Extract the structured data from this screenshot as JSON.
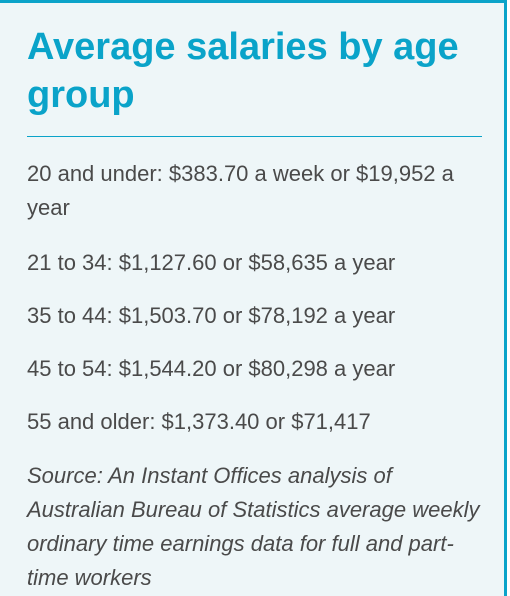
{
  "title": "Average salaries by age group",
  "items": [
    "20 and under: $383.70 a week or $19,952 a year",
    "21 to 34: $1,127.60 or $58,635 a year",
    "35 to 44: $1,503.70 or $78,192 a year",
    "45 to 54: $1,544.20 or $80,298 a year",
    "55 and older: $1,373.40 or $71,417"
  ],
  "source": "Source: An Instant Offices analysis of Australian Bureau of Statistics average weekly ordinary time earnings data for full and part-time workers",
  "colors": {
    "accent": "#0aa3c9",
    "panel_background": "#eef6f8",
    "text": "#4a4a4a"
  }
}
